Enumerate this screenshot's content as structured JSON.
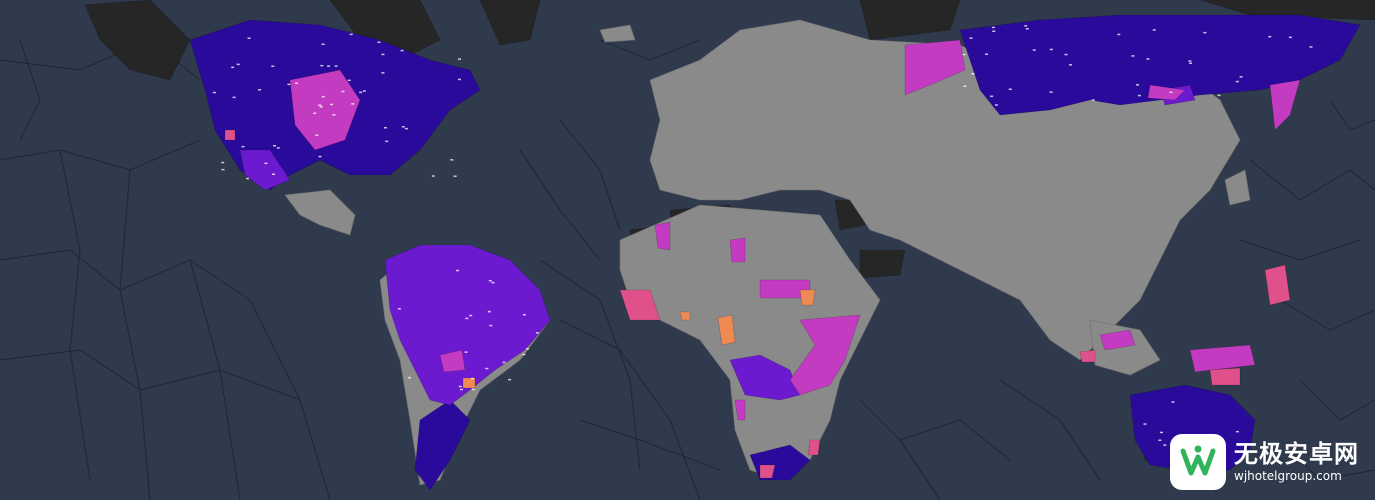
{
  "map": {
    "colors": {
      "ocean": "#2f3b4d",
      "ocean_lines": "#1f2a38",
      "land_neutral": "#8a8a8a",
      "land_dark": "#262626",
      "purple_deep": "#2a0a9a",
      "purple_mid": "#4a14b8",
      "violet": "#6b1ad0",
      "magenta": "#c23bc0",
      "pink": "#e0508a",
      "orange": "#f08a55"
    }
  },
  "watermark": {
    "brand_text": "无极安卓网",
    "url_text": "wjhotelgroup.com",
    "logo_icon": "w-leaf-logo-icon"
  }
}
